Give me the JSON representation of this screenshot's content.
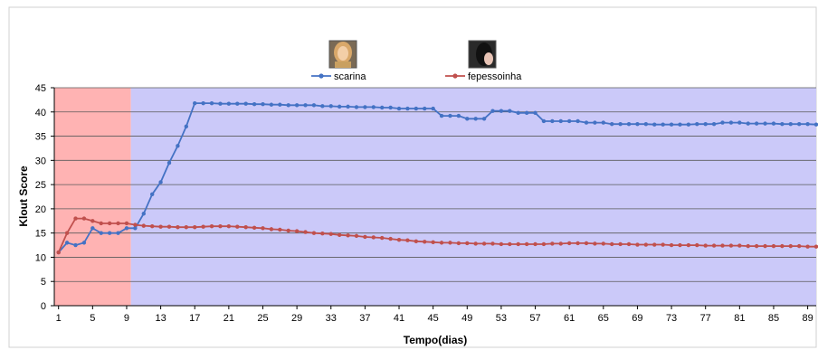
{
  "chart_data": {
    "type": "line",
    "xlabel": "Tempo(dias)",
    "ylabel": "Klout Score",
    "ylim": [
      0,
      45
    ],
    "yticks": [
      0,
      5,
      10,
      15,
      20,
      25,
      30,
      35,
      40,
      45
    ],
    "xlim": [
      1,
      90
    ],
    "xticks": [
      1,
      5,
      9,
      13,
      17,
      21,
      25,
      29,
      33,
      37,
      41,
      45,
      49,
      53,
      57,
      61,
      65,
      69,
      73,
      77,
      81,
      85,
      89
    ],
    "grid": true,
    "legend_position": "top-center",
    "regions": [
      {
        "x_start": 1,
        "x_end": 9.5,
        "color": "#ffb3b3"
      },
      {
        "x_start": 9.5,
        "x_end": 90,
        "color": "#cbc9f9"
      }
    ],
    "series": [
      {
        "name": "scarina",
        "color": "#4472c4",
        "points": [
          [
            1,
            11
          ],
          [
            2,
            13
          ],
          [
            3,
            12.5
          ],
          [
            4,
            13
          ],
          [
            5,
            16
          ],
          [
            6,
            15
          ],
          [
            7,
            15
          ],
          [
            8,
            15
          ],
          [
            9,
            16
          ],
          [
            10,
            16
          ],
          [
            11,
            19
          ],
          [
            12,
            23
          ],
          [
            13,
            25.5
          ],
          [
            14,
            29.5
          ],
          [
            15,
            33
          ],
          [
            16,
            37
          ],
          [
            17,
            41.8
          ],
          [
            18,
            41.8
          ],
          [
            19,
            41.8
          ],
          [
            20,
            41.7
          ],
          [
            21,
            41.7
          ],
          [
            22,
            41.7
          ],
          [
            23,
            41.7
          ],
          [
            24,
            41.6
          ],
          [
            25,
            41.6
          ],
          [
            26,
            41.5
          ],
          [
            27,
            41.5
          ],
          [
            28,
            41.4
          ],
          [
            29,
            41.4
          ],
          [
            30,
            41.4
          ],
          [
            31,
            41.4
          ],
          [
            32,
            41.2
          ],
          [
            33,
            41.2
          ],
          [
            34,
            41.1
          ],
          [
            35,
            41.1
          ],
          [
            36,
            41
          ],
          [
            37,
            41
          ],
          [
            38,
            41
          ],
          [
            39,
            40.9
          ],
          [
            40,
            40.9
          ],
          [
            41,
            40.7
          ],
          [
            42,
            40.7
          ],
          [
            43,
            40.7
          ],
          [
            44,
            40.7
          ],
          [
            45,
            40.7
          ],
          [
            46,
            39.2
          ],
          [
            47,
            39.2
          ],
          [
            48,
            39.2
          ],
          [
            49,
            38.6
          ],
          [
            50,
            38.6
          ],
          [
            51,
            38.6
          ],
          [
            52,
            40.2
          ],
          [
            53,
            40.2
          ],
          [
            54,
            40.2
          ],
          [
            55,
            39.8
          ],
          [
            56,
            39.8
          ],
          [
            57,
            39.8
          ],
          [
            58,
            38.1
          ],
          [
            59,
            38.1
          ],
          [
            60,
            38.1
          ],
          [
            61,
            38.1
          ],
          [
            62,
            38.1
          ],
          [
            63,
            37.8
          ],
          [
            64,
            37.8
          ],
          [
            65,
            37.8
          ],
          [
            66,
            37.5
          ],
          [
            67,
            37.5
          ],
          [
            68,
            37.5
          ],
          [
            69,
            37.5
          ],
          [
            70,
            37.5
          ],
          [
            71,
            37.4
          ],
          [
            72,
            37.4
          ],
          [
            73,
            37.4
          ],
          [
            74,
            37.4
          ],
          [
            75,
            37.4
          ],
          [
            76,
            37.5
          ],
          [
            77,
            37.5
          ],
          [
            78,
            37.5
          ],
          [
            79,
            37.8
          ],
          [
            80,
            37.8
          ],
          [
            81,
            37.8
          ],
          [
            82,
            37.6
          ],
          [
            83,
            37.6
          ],
          [
            84,
            37.6
          ],
          [
            85,
            37.6
          ],
          [
            86,
            37.5
          ],
          [
            87,
            37.5
          ],
          [
            88,
            37.5
          ],
          [
            89,
            37.5
          ],
          [
            90,
            37.4
          ]
        ]
      },
      {
        "name": "fepessoinha",
        "color": "#c0504d",
        "points": [
          [
            1,
            11
          ],
          [
            2,
            15
          ],
          [
            3,
            18
          ],
          [
            4,
            18
          ],
          [
            5,
            17.5
          ],
          [
            6,
            17
          ],
          [
            7,
            17
          ],
          [
            8,
            17
          ],
          [
            9,
            17
          ],
          [
            10,
            16.7
          ],
          [
            11,
            16.5
          ],
          [
            12,
            16.4
          ],
          [
            13,
            16.3
          ],
          [
            14,
            16.3
          ],
          [
            15,
            16.2
          ],
          [
            16,
            16.2
          ],
          [
            17,
            16.2
          ],
          [
            18,
            16.3
          ],
          [
            19,
            16.4
          ],
          [
            20,
            16.4
          ],
          [
            21,
            16.4
          ],
          [
            22,
            16.3
          ],
          [
            23,
            16.2
          ],
          [
            24,
            16.1
          ],
          [
            25,
            16
          ],
          [
            26,
            15.8
          ],
          [
            27,
            15.7
          ],
          [
            28,
            15.5
          ],
          [
            29,
            15.4
          ],
          [
            30,
            15.2
          ],
          [
            31,
            15
          ],
          [
            32,
            14.9
          ],
          [
            33,
            14.8
          ],
          [
            34,
            14.6
          ],
          [
            35,
            14.5
          ],
          [
            36,
            14.4
          ],
          [
            37,
            14.2
          ],
          [
            38,
            14.1
          ],
          [
            39,
            14
          ],
          [
            40,
            13.8
          ],
          [
            41,
            13.6
          ],
          [
            42,
            13.5
          ],
          [
            43,
            13.3
          ],
          [
            44,
            13.2
          ],
          [
            45,
            13.1
          ],
          [
            46,
            13
          ],
          [
            47,
            13
          ],
          [
            48,
            12.9
          ],
          [
            49,
            12.9
          ],
          [
            50,
            12.8
          ],
          [
            51,
            12.8
          ],
          [
            52,
            12.8
          ],
          [
            53,
            12.7
          ],
          [
            54,
            12.7
          ],
          [
            55,
            12.7
          ],
          [
            56,
            12.7
          ],
          [
            57,
            12.7
          ],
          [
            58,
            12.7
          ],
          [
            59,
            12.8
          ],
          [
            60,
            12.8
          ],
          [
            61,
            12.9
          ],
          [
            62,
            12.9
          ],
          [
            63,
            12.9
          ],
          [
            64,
            12.8
          ],
          [
            65,
            12.8
          ],
          [
            66,
            12.7
          ],
          [
            67,
            12.7
          ],
          [
            68,
            12.7
          ],
          [
            69,
            12.6
          ],
          [
            70,
            12.6
          ],
          [
            71,
            12.6
          ],
          [
            72,
            12.6
          ],
          [
            73,
            12.5
          ],
          [
            74,
            12.5
          ],
          [
            75,
            12.5
          ],
          [
            76,
            12.5
          ],
          [
            77,
            12.4
          ],
          [
            78,
            12.4
          ],
          [
            79,
            12.4
          ],
          [
            80,
            12.4
          ],
          [
            81,
            12.4
          ],
          [
            82,
            12.3
          ],
          [
            83,
            12.3
          ],
          [
            84,
            12.3
          ],
          [
            85,
            12.3
          ],
          [
            86,
            12.3
          ],
          [
            87,
            12.3
          ],
          [
            88,
            12.3
          ],
          [
            89,
            12.2
          ],
          [
            90,
            12.2
          ]
        ]
      }
    ]
  },
  "legend": {
    "avatar_1": "avatar-photo-scarina",
    "avatar_2": "avatar-photo-fepessoinha"
  }
}
